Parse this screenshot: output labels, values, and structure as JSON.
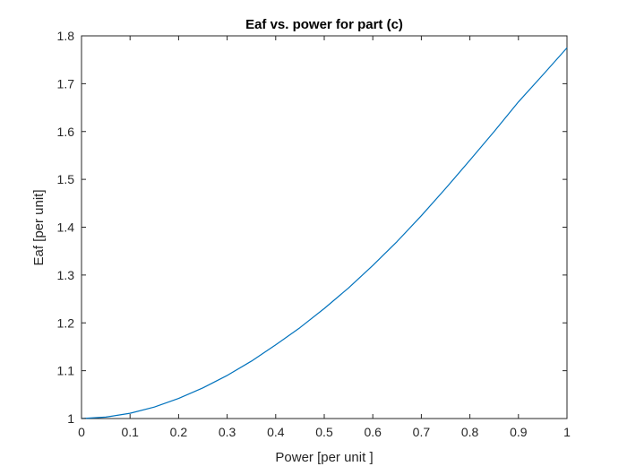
{
  "chart_data": {
    "type": "line",
    "title": "Eaf vs. power for part (c)",
    "xlabel": "Power [per unit ]",
    "ylabel": "Eaf [per unit]",
    "xlim": [
      0,
      1
    ],
    "ylim": [
      1,
      1.8
    ],
    "xticks": [
      0,
      0.1,
      0.2,
      0.3,
      0.4,
      0.5,
      0.6,
      0.7,
      0.8,
      0.9,
      1
    ],
    "xtick_labels": [
      "0",
      "0.1",
      "0.2",
      "0.3",
      "0.4",
      "0.5",
      "0.6",
      "0.7",
      "0.8",
      "0.9",
      "1"
    ],
    "yticks": [
      1,
      1.1,
      1.2,
      1.3,
      1.4,
      1.5,
      1.6,
      1.7,
      1.8
    ],
    "ytick_labels": [
      "1",
      "1.1",
      "1.2",
      "1.3",
      "1.4",
      "1.5",
      "1.6",
      "1.7",
      "1.8"
    ],
    "grid": false,
    "legend": "none",
    "series": [
      {
        "color": "#0072bd",
        "x": [
          0,
          0.05,
          0.1,
          0.15,
          0.2,
          0.25,
          0.3,
          0.35,
          0.4,
          0.45,
          0.5,
          0.55,
          0.6,
          0.65,
          0.7,
          0.75,
          0.8,
          0.85,
          0.9,
          0.95,
          1
        ],
        "y": [
          1.0,
          1.003,
          1.011,
          1.024,
          1.042,
          1.064,
          1.09,
          1.12,
          1.154,
          1.19,
          1.23,
          1.273,
          1.32,
          1.37,
          1.424,
          1.481,
          1.54,
          1.6,
          1.662,
          1.718,
          1.775
        ]
      }
    ]
  }
}
